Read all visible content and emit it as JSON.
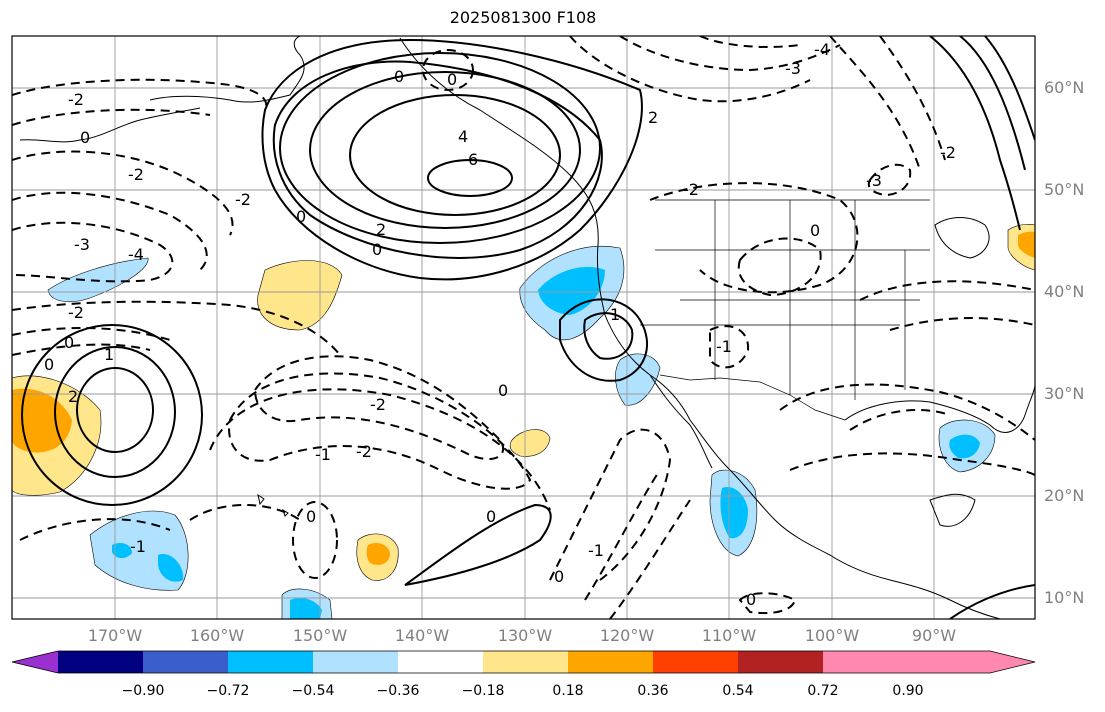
{
  "title": "2025081300 F108",
  "latitude_labels": [
    "60°N",
    "50°N",
    "40°N",
    "30°N",
    "20°N",
    "10°N"
  ],
  "longitude_labels": [
    "170°W",
    "160°W",
    "150°W",
    "140°W",
    "130°W",
    "120°W",
    "110°W",
    "100°W",
    "90°W"
  ],
  "contour_labels": [
    "-4",
    "-3",
    "-2",
    "-1",
    "0",
    "1",
    "2",
    "4",
    "6"
  ],
  "colorbar": {
    "tick_labels": [
      "−0.90",
      "−0.72",
      "−0.54",
      "−0.36",
      "−0.18",
      "0.18",
      "0.36",
      "0.54",
      "0.72",
      "0.90"
    ],
    "colors": [
      "#9b30d0",
      "#000080",
      "#3a5fcd",
      "#00bfff",
      "#b0e2ff",
      "#ffffff",
      "#ffe68a",
      "#ffa500",
      "#ff4000",
      "#b22222",
      "#ff88b0"
    ]
  }
}
